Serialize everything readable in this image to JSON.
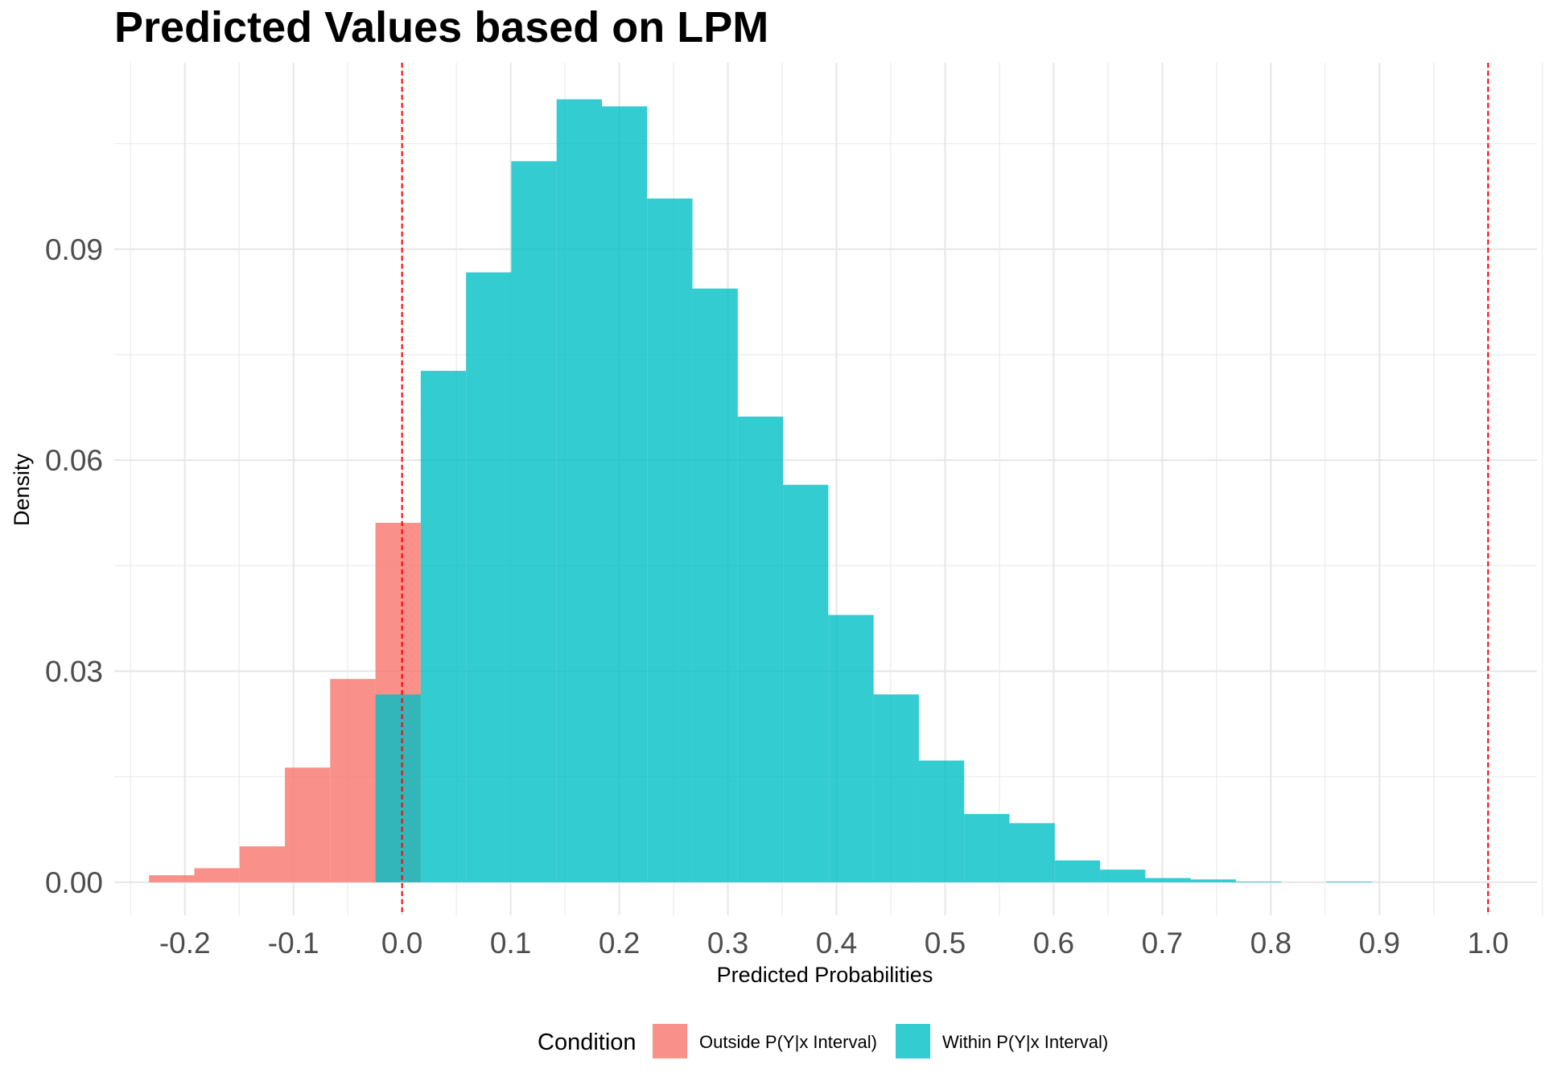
{
  "chart_data": {
    "type": "bar",
    "title": "Predicted Values based on LPM",
    "xlabel": "Predicted Probabilities",
    "ylabel": "Density",
    "xlim": [
      -0.265,
      1.045
    ],
    "ylim": [
      -0.0047,
      0.1165
    ],
    "xticks": [
      -0.2,
      -0.1,
      0.0,
      0.1,
      0.2,
      0.3,
      0.4,
      0.5,
      0.6,
      0.7,
      0.8,
      0.9,
      1.0
    ],
    "xtick_labels": [
      "-0.2",
      "-0.1",
      "0.0",
      "0.1",
      "0.2",
      "0.3",
      "0.4",
      "0.5",
      "0.6",
      "0.7",
      "0.8",
      "0.9",
      "1.0"
    ],
    "yticks": [
      0.0,
      0.03,
      0.06,
      0.09
    ],
    "ytick_labels": [
      "0.00",
      "0.03",
      "0.06",
      "0.09"
    ],
    "grid": true,
    "bin_start": -0.233,
    "bin_width": 0.0417,
    "vlines": [
      {
        "x": 0.0,
        "color": "#ff0000",
        "style": "dashed"
      },
      {
        "x": 1.0,
        "color": "#ff0000",
        "style": "dashed"
      }
    ],
    "legend": {
      "title": "Condition",
      "position": "bottom",
      "entries": [
        "Outside P(Y|x Interval)",
        "Within P(Y|x Interval)"
      ]
    },
    "series": [
      {
        "name": "Outside P(Y|x Interval)",
        "color": "#F8766D",
        "values": [
          0.001,
          0.002,
          0.0051,
          0.0163,
          0.0289,
          0.0511,
          0,
          0,
          0,
          0,
          0,
          0,
          0,
          0,
          0,
          0,
          0,
          0,
          0,
          0,
          0,
          0,
          0,
          0,
          0,
          0,
          0,
          0
        ]
      },
      {
        "name": "Within P(Y|x Interval)",
        "color": "#00BFC4",
        "values": [
          0,
          0,
          0,
          0,
          0,
          0.0267,
          0.0727,
          0.0867,
          0.1025,
          0.1113,
          0.1103,
          0.0972,
          0.0844,
          0.0662,
          0.0565,
          0.038,
          0.0267,
          0.0173,
          0.0097,
          0.0084,
          0.0031,
          0.0018,
          0.0006,
          0.0004,
          0.0001,
          0,
          0.0001,
          0
        ]
      }
    ]
  }
}
